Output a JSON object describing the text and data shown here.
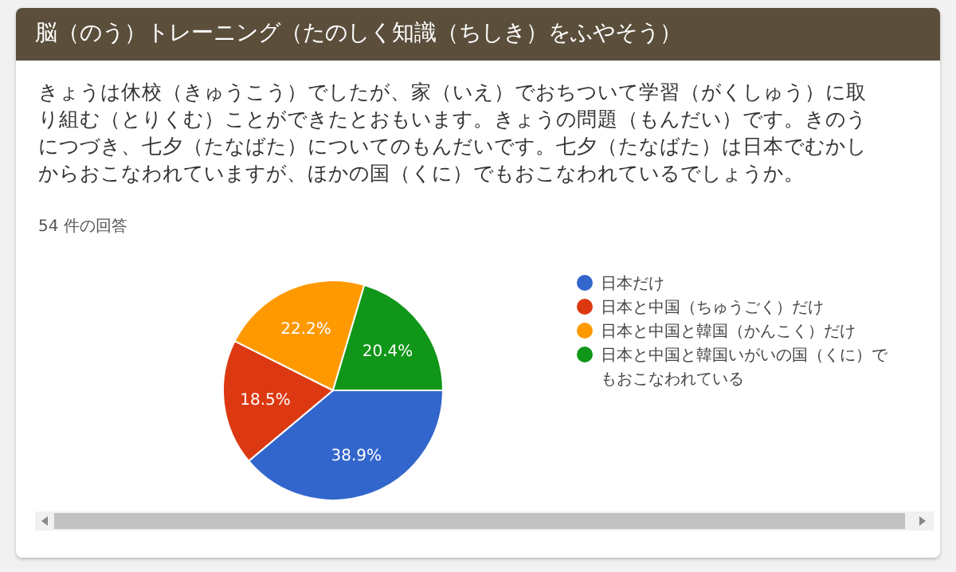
{
  "chart_data": {
    "type": "pie",
    "title": "脳（のう）トレーニング（たのしく知識（ちしき）をふやそう）",
    "subtitle": "きょうは休校（きゅうこう）でしたが、家（いえ）でおちついて学習（がくしゅう）に取り組む（とりくむ）ことができたとおもいます。きょうの問題（もんだい）です。きのうにつづき、七夕（たなばた）についてのもんだいです。七夕（たなばた）は日本でむかしからおこなわれていますが、ほかの国（くに）でもおこなわれているでしょうか。",
    "annotations": [
      "54 件の回答"
    ],
    "categories": [
      "日本だけ",
      "日本と中国（ちゅうごく）だけ",
      "日本と中国と韓国（かんこく）だけ",
      "日本と中国と韓国いがいの国（くに）でもおこなわれている"
    ],
    "values": [
      38.9,
      18.5,
      22.2,
      20.4
    ],
    "value_labels": [
      "38.9%",
      "18.5%",
      "22.2%",
      "20.4%"
    ],
    "colors": [
      "#3366cc",
      "#dc3912",
      "#ff9900",
      "#109618"
    ],
    "legend": "right"
  }
}
